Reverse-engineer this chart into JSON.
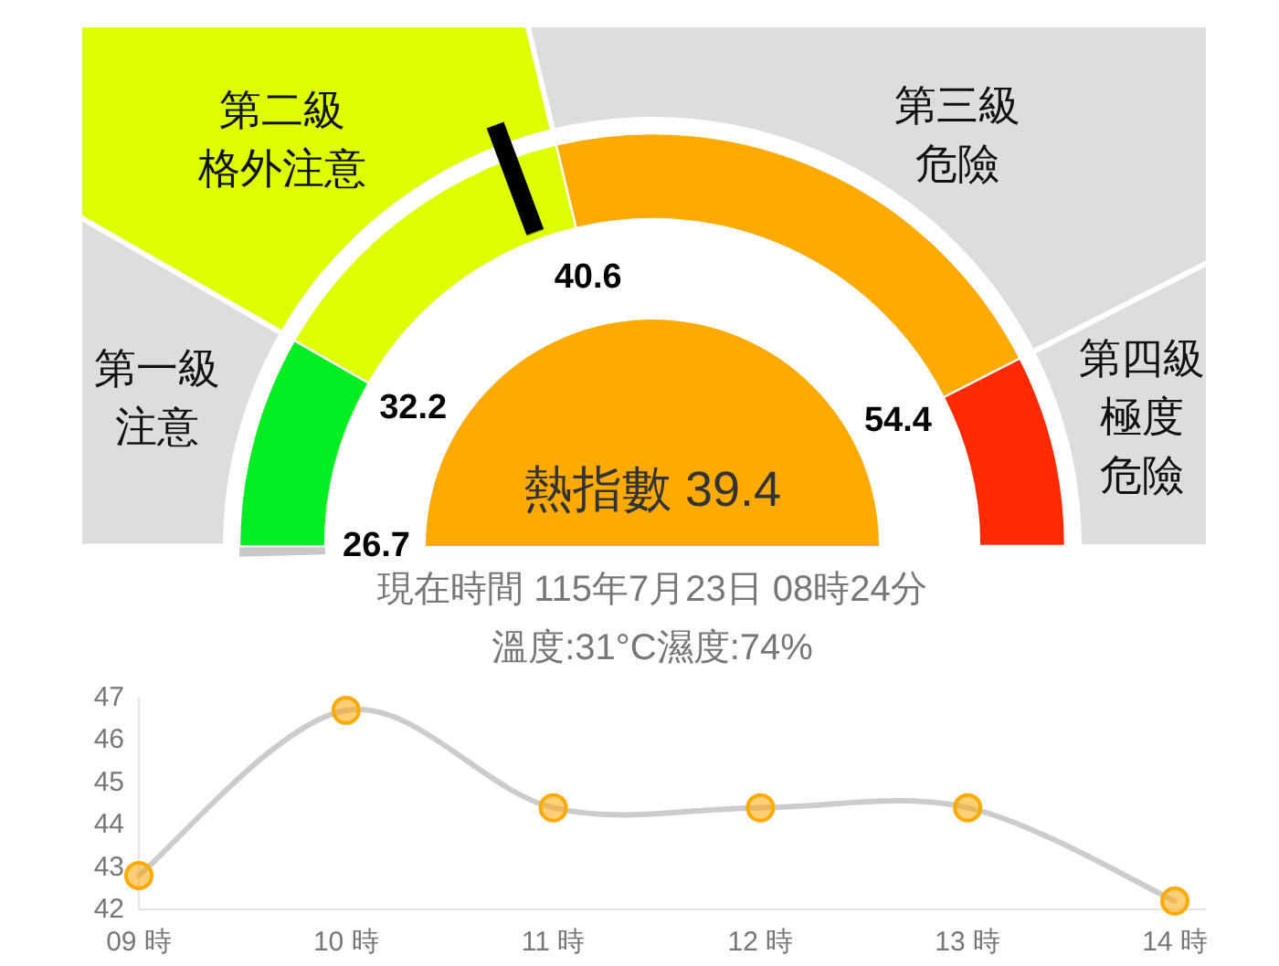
{
  "chart_data": [
    {
      "type": "donut",
      "title": "熱指數 39.4",
      "categories": [
        null,
        "第一級注意",
        "第二級格外注意",
        "第三級危險",
        "第四級極度危險"
      ],
      "values": [
        0.8,
        16.5,
        25.7,
        42.1,
        14.9
      ],
      "colors": [
        "#c8c8c8",
        "#00ee22",
        "#ddff00",
        "#ffaa00",
        "#ff2a00"
      ],
      "needle": "第二級格外注意",
      "annotations": [
        "26.7",
        "32.2",
        "40.6",
        "54.4",
        "現在時間 115年7月23日 08時24分",
        "溫度:31°C濕度:74%"
      ]
    },
    {
      "type": "line",
      "categories": [
        "09 時",
        "10 時",
        "11 時",
        "12 時",
        "13 時",
        "14 時"
      ],
      "series": [
        {
          "color": "#cccccc",
          "colors": [
            "#ffaa00",
            "#ffaa00",
            "#ffaa00",
            "#ffaa00",
            "#ffaa00",
            "#ffaa00"
          ],
          "values": [
            42.8,
            46.7,
            44.4,
            44.4,
            44.4,
            42.2
          ]
        }
      ],
      "ylim": [
        42,
        47
      ],
      "yticks": [
        42,
        43,
        44,
        45,
        46,
        47
      ],
      "grid": false,
      "marker": "circle",
      "line_style": "solid"
    }
  ]
}
